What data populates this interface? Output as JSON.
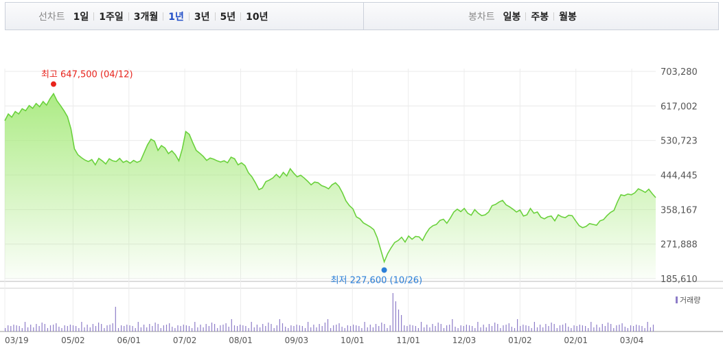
{
  "toolbar": {
    "line_label": "선차트",
    "periods": [
      "1일",
      "1주일",
      "3개월",
      "1년",
      "3년",
      "5년",
      "10년"
    ],
    "active_period": "1년",
    "candle_label": "봉차트",
    "candle_options": [
      "일봉",
      "주봉",
      "월봉"
    ]
  },
  "chart_data": {
    "type": "area",
    "y_ticks": [
      "703,280",
      "617,002",
      "530,723",
      "444,445",
      "358,167",
      "271,888",
      "185,610"
    ],
    "ylim": [
      185610,
      703280
    ],
    "x_ticks": [
      "03/19",
      "05/02",
      "06/01",
      "07/02",
      "08/01",
      "09/03",
      "10/01",
      "11/01",
      "12/03",
      "01/02",
      "02/01",
      "03/04"
    ],
    "high_label": "최고 647,500 (04/12)",
    "low_label": "최저 227,600 (10/26)",
    "high": {
      "x": "04/12",
      "y": 647500
    },
    "low": {
      "x": "10/26",
      "y": 227600
    },
    "volume_legend": "거래량",
    "colors": {
      "line": "#6ad13c",
      "fill_top": "#a8ea7e",
      "high_marker": "#e8231c",
      "low_marker": "#2a7fd8",
      "volume": "#8d7cc8"
    },
    "series": [
      {
        "values": [
          580000,
          597000,
          589000,
          603000,
          597000,
          610000,
          605000,
          618000,
          611000,
          623000,
          615000,
          628000,
          619000,
          635000,
          647500,
          630000,
          618000,
          605000,
          590000,
          560000,
          510000,
          495000,
          488000,
          482000,
          478000,
          483000,
          470000,
          486000,
          480000,
          472000,
          485000,
          480000,
          478000,
          486000,
          476000,
          480000,
          474000,
          481000,
          476000,
          480000,
          500000,
          520000,
          534000,
          529000,
          506000,
          518000,
          512000,
          498000,
          505000,
          495000,
          480000,
          510000,
          553000,
          546000,
          525000,
          506000,
          499000,
          491000,
          481000,
          487000,
          484000,
          480000,
          477000,
          480000,
          475000,
          489000,
          485000,
          470000,
          475000,
          468000,
          450000,
          440000,
          425000,
          408000,
          412000,
          428000,
          432000,
          437000,
          446000,
          438000,
          451000,
          442000,
          460000,
          449000,
          440000,
          444000,
          437000,
          429000,
          420000,
          427000,
          425000,
          418000,
          415000,
          410000,
          420000,
          425000,
          416000,
          400000,
          380000,
          368000,
          360000,
          340000,
          335000,
          325000,
          320000,
          315000,
          308000,
          288000,
          258000,
          227600,
          248000,
          263000,
          276000,
          281000,
          289000,
          277000,
          292000,
          284000,
          291000,
          290000,
          281000,
          298000,
          311000,
          318000,
          321000,
          331000,
          334000,
          324000,
          337000,
          352000,
          359000,
          353000,
          361000,
          349000,
          344000,
          358000,
          349000,
          343000,
          345000,
          352000,
          368000,
          371000,
          377000,
          381000,
          370000,
          365000,
          359000,
          352000,
          357000,
          342000,
          345000,
          361000,
          349000,
          352000,
          339000,
          335000,
          340000,
          342000,
          330000,
          345000,
          340000,
          338000,
          344000,
          343000,
          330000,
          318000,
          313000,
          316000,
          323000,
          321000,
          319000,
          330000,
          333000,
          343000,
          351000,
          356000,
          377000,
          395000,
          393000,
          397000,
          395000,
          400000,
          410000,
          406000,
          401000,
          409000,
          398000,
          388000
        ]
      }
    ]
  }
}
